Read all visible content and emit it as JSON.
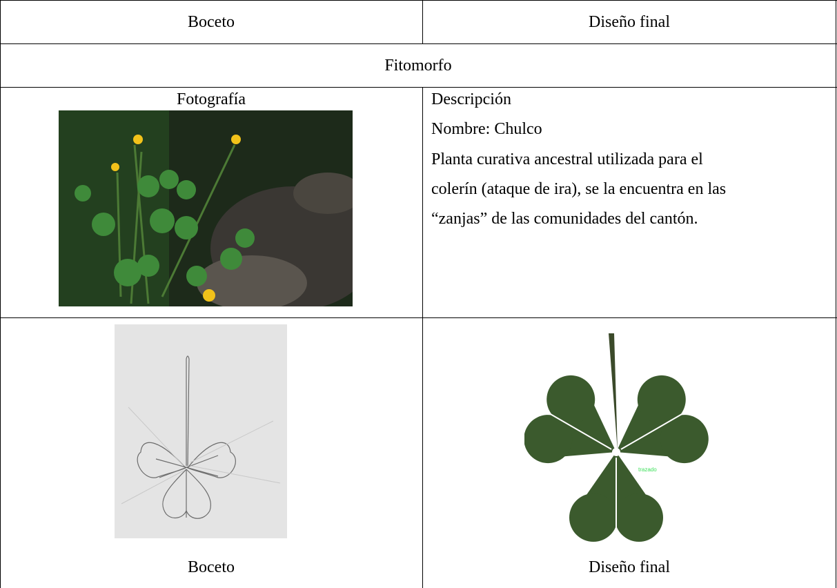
{
  "table": {
    "header": [
      "Boceto",
      "Diseño final"
    ],
    "section": "Fitomorfo",
    "photo_caption": "Fotografía",
    "description": {
      "title": "Descripción",
      "name": "Nombre: Chulco",
      "lines": [
        "Planta curativa ancestral utilizada para el",
        "colerín (ataque de ira), se la encuentra en las",
        "“zanjas” de las comunidades del cantón."
      ]
    },
    "design_label": "trazado",
    "captions": [
      "Boceto",
      "Diseño final"
    ]
  }
}
